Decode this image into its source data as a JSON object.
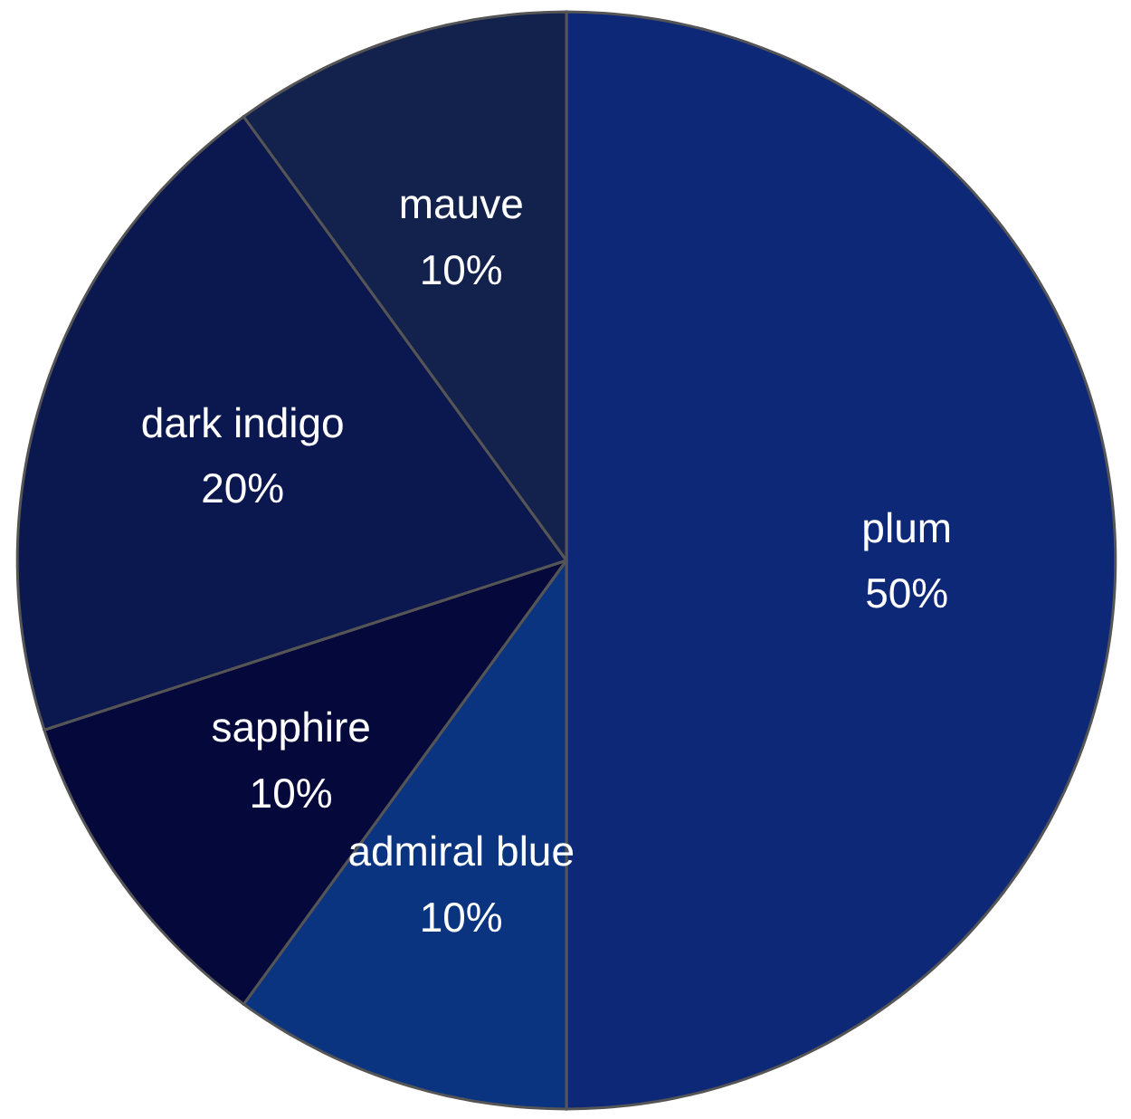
{
  "chart_data": {
    "type": "pie",
    "categories": [
      "plum",
      "admiral blue",
      "sapphire",
      "dark indigo",
      "mauve"
    ],
    "values": [
      50,
      10,
      10,
      20,
      10
    ],
    "value_labels": [
      "50%",
      "10%",
      "10%",
      "20%",
      "10%"
    ],
    "colors": [
      "#0e2878",
      "#0a3480",
      "#04083a",
      "#0b174f",
      "#13214d"
    ]
  }
}
